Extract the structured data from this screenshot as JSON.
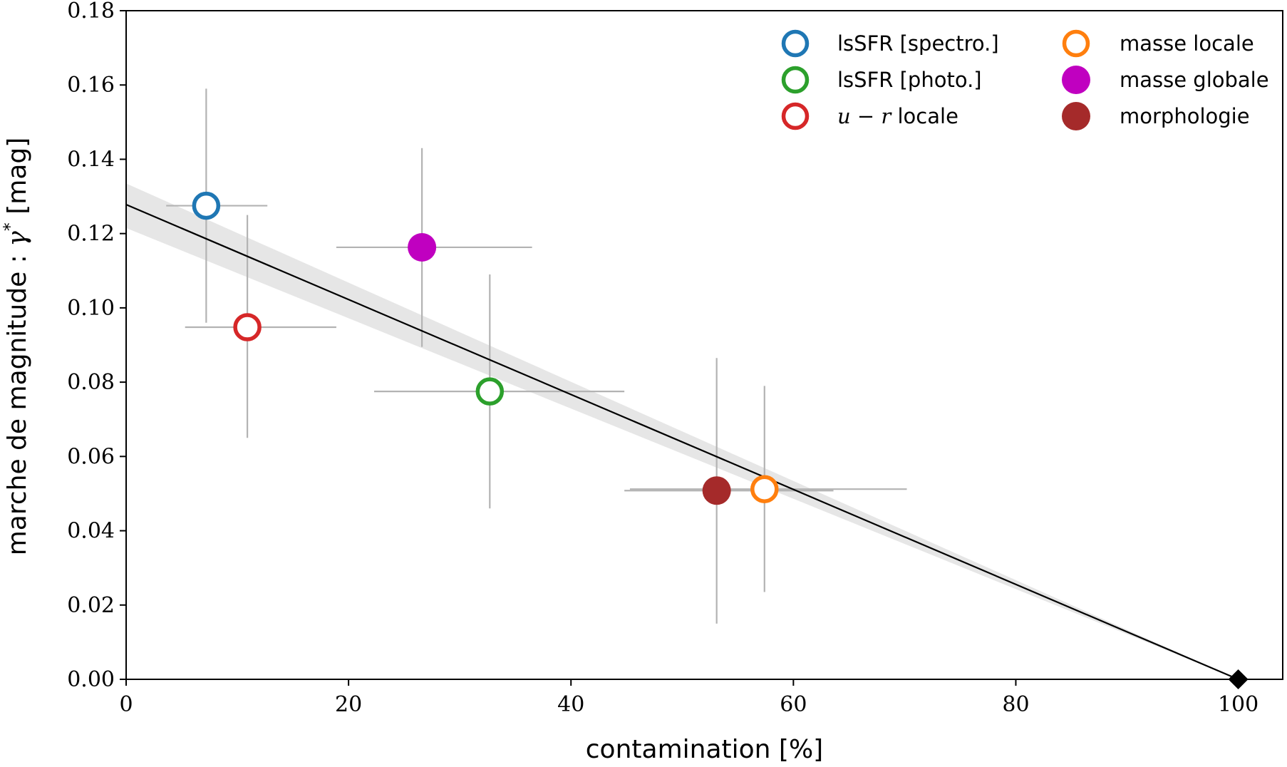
{
  "chart_data": {
    "type": "scatter",
    "xlabel": "contamination [%]",
    "ylabel_prefix": "marche de magnitude : ",
    "ylabel_symbol": "γ",
    "ylabel_superscript": "*",
    "ylabel_suffix": " [mag]",
    "xlim": [
      0,
      104
    ],
    "ylim": [
      0,
      0.18
    ],
    "x_ticks": [
      0,
      20,
      40,
      60,
      80,
      100
    ],
    "x_tick_labels": [
      "0",
      "20",
      "40",
      "60",
      "80",
      "100"
    ],
    "y_ticks": [
      0.0,
      0.02,
      0.04,
      0.06,
      0.08,
      0.1,
      0.12,
      0.14,
      0.16,
      0.18
    ],
    "y_tick_labels": [
      "0.00",
      "0.02",
      "0.04",
      "0.06",
      "0.08",
      "0.10",
      "0.12",
      "0.14",
      "0.16",
      "0.18"
    ],
    "grid": false,
    "legend_position": "top-right",
    "errorbar_color": "#b3b3b3",
    "fit_line": {
      "x": [
        0,
        100
      ],
      "y": [
        0.1278,
        0.0
      ],
      "color": "#000000",
      "band_y0_low": 0.1215,
      "band_y0_high": 0.1335,
      "band_color": "#e6e6e6"
    },
    "anchor_point": {
      "x": 100,
      "y": 0.0,
      "marker": "diamond",
      "color": "#000000"
    },
    "series": [
      {
        "label": "lsSFR [spectro.]",
        "label_parts": [
          "lsSFR [spectro.]"
        ],
        "color": "#1f77b4",
        "filled": false,
        "x": 7.2,
        "y": 0.1275,
        "xerr": [
          3.6,
          12.7
        ],
        "yerr": [
          0.096,
          0.159
        ]
      },
      {
        "label": "lsSFR [photo.]",
        "label_parts": [
          "lsSFR [photo.]"
        ],
        "color": "#2ca02c",
        "filled": false,
        "x": 32.7,
        "y": 0.0775,
        "xerr": [
          22.3,
          44.8
        ],
        "yerr": [
          0.046,
          0.109
        ]
      },
      {
        "label": "u − r locale",
        "label_math": "u − r",
        "label_text": " locale",
        "color": "#d62728",
        "filled": false,
        "x": 10.9,
        "y": 0.0948,
        "xerr": [
          5.3,
          18.9
        ],
        "yerr": [
          0.065,
          0.125
        ]
      },
      {
        "label": "masse locale",
        "label_parts": [
          "masse locale"
        ],
        "color": "#ff7f0e",
        "filled": false,
        "x": 57.4,
        "y": 0.0512,
        "xerr": [
          45.3,
          70.2
        ],
        "yerr": [
          0.0235,
          0.079
        ]
      },
      {
        "label": "masse globale",
        "label_parts": [
          "masse globale"
        ],
        "color": "#c000c0",
        "filled": true,
        "x": 26.6,
        "y": 0.1163,
        "xerr": [
          18.9,
          36.5
        ],
        "yerr": [
          0.0895,
          0.143
        ]
      },
      {
        "label": "morphologie",
        "label_parts": [
          "morphologie"
        ],
        "color": "#a52a2a",
        "filled": true,
        "x": 53.1,
        "y": 0.0508,
        "xerr": [
          44.8,
          63.6
        ],
        "yerr": [
          0.015,
          0.0865
        ]
      }
    ]
  }
}
